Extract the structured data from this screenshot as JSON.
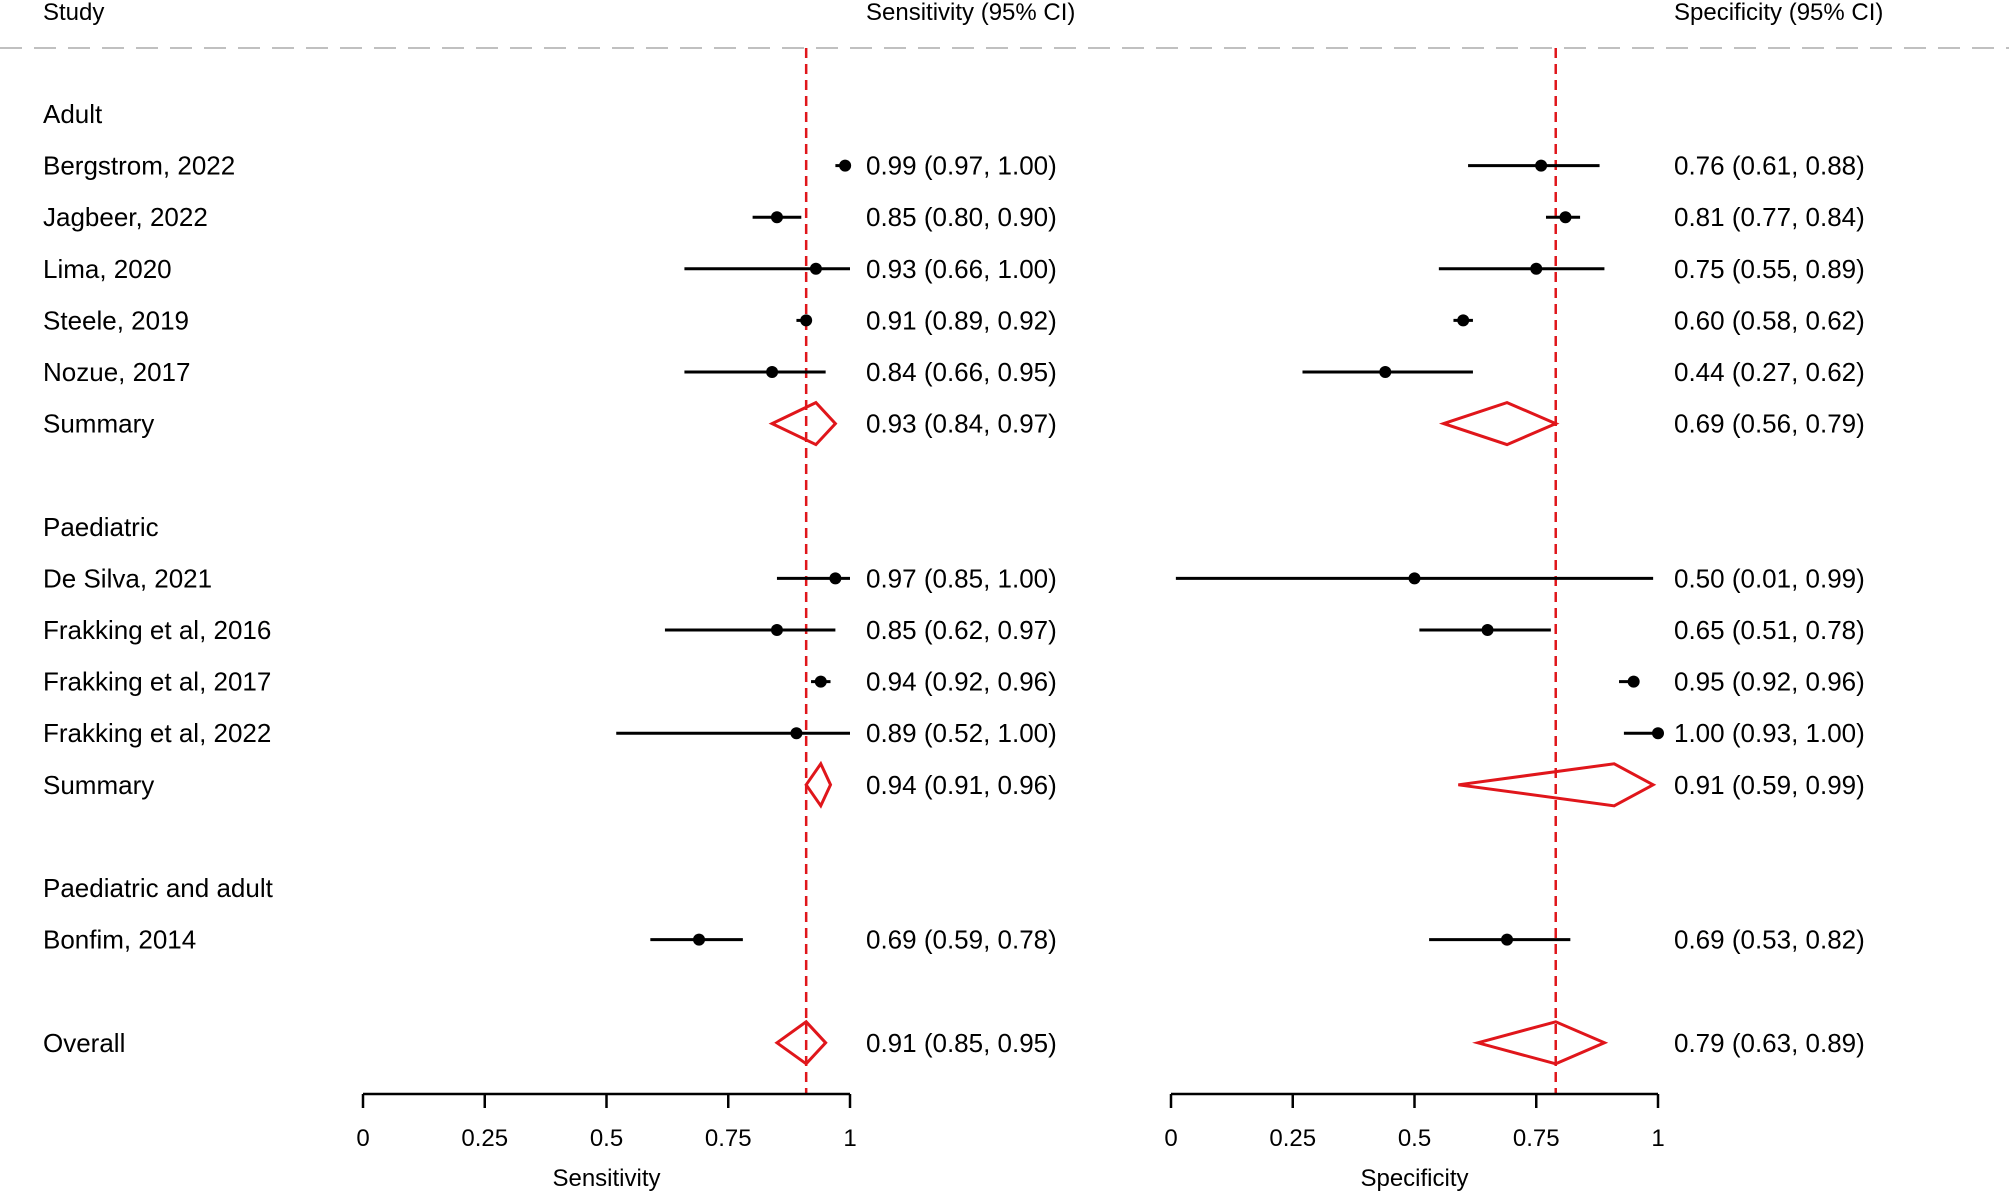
{
  "chart_data": {
    "type": "forest",
    "headers": {
      "study": "Study",
      "sensitivity": "Sensitivity (95% CI)",
      "specificity": "Specificity (95% CI)"
    },
    "reference_lines": {
      "sensitivity": 0.91,
      "specificity": 0.79
    },
    "axes": {
      "sensitivity": {
        "label": "Sensitivity",
        "range": [
          0,
          1
        ],
        "ticks": [
          0,
          0.25,
          0.5,
          0.75,
          1
        ],
        "tick_labels": [
          "0",
          "0.25",
          "0.5",
          "0.75",
          "1"
        ]
      },
      "specificity": {
        "label": "Specificity",
        "range": [
          0,
          1
        ],
        "ticks": [
          0,
          0.25,
          0.5,
          0.75,
          1
        ],
        "tick_labels": [
          "0",
          "0.25",
          "0.5",
          "0.75",
          "1"
        ]
      }
    },
    "colors": {
      "summary": "#e0161b",
      "reference": "#e0161b",
      "header_divider": "#c0c0c0",
      "study": "#000000"
    },
    "rows": [
      {
        "kind": "group",
        "label": "Adult"
      },
      {
        "kind": "study",
        "label": "Bergstrom, 2022",
        "sens": [
          0.99,
          0.97,
          1.0
        ],
        "sens_text": "0.99 (0.97, 1.00)",
        "spec": [
          0.76,
          0.61,
          0.88
        ],
        "spec_text": "0.76 (0.61, 0.88)"
      },
      {
        "kind": "study",
        "label": "Jagbeer, 2022",
        "sens": [
          0.85,
          0.8,
          0.9
        ],
        "sens_text": "0.85 (0.80, 0.90)",
        "spec": [
          0.81,
          0.77,
          0.84
        ],
        "spec_text": "0.81 (0.77, 0.84)"
      },
      {
        "kind": "study",
        "label": "Lima, 2020",
        "sens": [
          0.93,
          0.66,
          1.0
        ],
        "sens_text": "0.93 (0.66, 1.00)",
        "spec": [
          0.75,
          0.55,
          0.89
        ],
        "spec_text": "0.75 (0.55, 0.89)"
      },
      {
        "kind": "study",
        "label": "Steele, 2019",
        "sens": [
          0.91,
          0.89,
          0.92
        ],
        "sens_text": "0.91 (0.89, 0.92)",
        "spec": [
          0.6,
          0.58,
          0.62
        ],
        "spec_text": "0.60 (0.58, 0.62)"
      },
      {
        "kind": "study",
        "label": "Nozue, 2017",
        "sens": [
          0.84,
          0.66,
          0.95
        ],
        "sens_text": "0.84 (0.66, 0.95)",
        "spec": [
          0.44,
          0.27,
          0.62
        ],
        "spec_text": "0.44 (0.27, 0.62)"
      },
      {
        "kind": "summary",
        "label": "Summary",
        "sens": [
          0.93,
          0.84,
          0.97
        ],
        "sens_text": "0.93 (0.84, 0.97)",
        "spec": [
          0.69,
          0.56,
          0.79
        ],
        "spec_text": "0.69 (0.56, 0.79)"
      },
      {
        "kind": "spacer"
      },
      {
        "kind": "group",
        "label": "Paediatric"
      },
      {
        "kind": "study",
        "label": "De Silva, 2021",
        "sens": [
          0.97,
          0.85,
          1.0
        ],
        "sens_text": "0.97 (0.85, 1.00)",
        "spec": [
          0.5,
          0.01,
          0.99
        ],
        "spec_text": "0.50 (0.01, 0.99)"
      },
      {
        "kind": "study",
        "label": "Frakking et al, 2016",
        "sens": [
          0.85,
          0.62,
          0.97
        ],
        "sens_text": "0.85 (0.62, 0.97)",
        "spec": [
          0.65,
          0.51,
          0.78
        ],
        "spec_text": "0.65 (0.51, 0.78)"
      },
      {
        "kind": "study",
        "label": "Frakking et al, 2017",
        "sens": [
          0.94,
          0.92,
          0.96
        ],
        "sens_text": "0.94 (0.92, 0.96)",
        "spec": [
          0.95,
          0.92,
          0.96
        ],
        "spec_text": "0.95 (0.92, 0.96)"
      },
      {
        "kind": "study",
        "label": "Frakking et al, 2022",
        "sens": [
          0.89,
          0.52,
          1.0
        ],
        "sens_text": "0.89 (0.52, 1.00)",
        "spec": [
          1.0,
          0.93,
          1.0
        ],
        "spec_text": "1.00 (0.93, 1.00)"
      },
      {
        "kind": "summary",
        "label": "Summary",
        "sens": [
          0.94,
          0.91,
          0.96
        ],
        "sens_text": "0.94 (0.91, 0.96)",
        "spec": [
          0.91,
          0.59,
          0.99
        ],
        "spec_text": "0.91 (0.59, 0.99)"
      },
      {
        "kind": "spacer"
      },
      {
        "kind": "group",
        "label": "Paediatric and adult"
      },
      {
        "kind": "study",
        "label": "Bonfim, 2014",
        "sens": [
          0.69,
          0.59,
          0.78
        ],
        "sens_text": "0.69 (0.59, 0.78)",
        "spec": [
          0.69,
          0.53,
          0.82
        ],
        "spec_text": "0.69 (0.53, 0.82)"
      },
      {
        "kind": "spacer"
      },
      {
        "kind": "summary",
        "label": "Overall",
        "sens": [
          0.91,
          0.85,
          0.95
        ],
        "sens_text": "0.91 (0.85, 0.95)",
        "spec": [
          0.79,
          0.63,
          0.89
        ],
        "spec_text": "0.79 (0.63, 0.89)"
      }
    ]
  }
}
